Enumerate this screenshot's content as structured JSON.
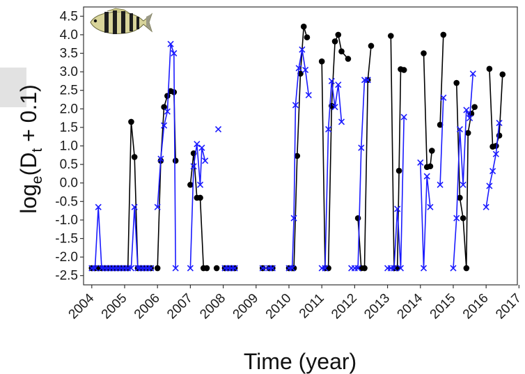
{
  "chart_data": {
    "type": "line",
    "title": "",
    "xlabel": "Time (year)",
    "ylabel_main": "log",
    "ylabel_sub1": "e",
    "ylabel_mid": "(D",
    "ylabel_sub2": "t",
    "ylabel_tail": " + 0.1)",
    "xlim": [
      2003.75,
      2016.95
    ],
    "ylim": [
      -2.75,
      4.75
    ],
    "x_ticks": [
      "2004",
      "2005",
      "2006",
      "2007",
      "2008",
      "2009",
      "2010",
      "2011",
      "2012",
      "2013",
      "2014",
      "2015",
      "2016",
      "2017"
    ],
    "y_ticks": [
      "4.5",
      "4.0",
      "3.5",
      "3.0",
      "2.5",
      "2.0",
      "1.5",
      "1.0",
      "0.5",
      "0.0",
      "-0.5",
      "-1.0",
      "-1.5",
      "-2.0",
      "-2.5"
    ],
    "grid": false,
    "legend": "none",
    "fish_icon": "sergeant-major-fish-icon",
    "series": [
      {
        "marker": "circle",
        "color": "#000000",
        "segments": [
          [
            [
              2004.0,
              -2.3
            ],
            [
              2004.1,
              -2.3
            ],
            [
              2004.2,
              -2.3
            ],
            [
              2004.3,
              -2.3
            ],
            [
              2004.4,
              -2.3
            ],
            [
              2004.5,
              -2.3
            ],
            [
              2004.6,
              -2.3
            ],
            [
              2004.7,
              -2.3
            ],
            [
              2004.8,
              -2.3
            ],
            [
              2004.9,
              -2.3
            ],
            [
              2005.0,
              -2.3
            ],
            [
              2005.1,
              -2.3
            ],
            [
              2005.2,
              1.65
            ],
            [
              2005.3,
              0.7
            ],
            [
              2005.4,
              -2.3
            ],
            [
              2005.5,
              -2.3
            ],
            [
              2005.6,
              -2.3
            ],
            [
              2005.7,
              -2.3
            ],
            [
              2005.8,
              -2.3
            ]
          ],
          [
            [
              2006.0,
              -2.3
            ],
            [
              2006.1,
              0.6
            ],
            [
              2006.2,
              2.05
            ],
            [
              2006.3,
              2.35
            ],
            [
              2006.4,
              2.48
            ],
            [
              2006.5,
              2.45
            ],
            [
              2006.55,
              0.6
            ]
          ],
          [
            [
              2007.0,
              -0.05
            ],
            [
              2007.1,
              0.8
            ],
            [
              2007.2,
              -0.4
            ],
            [
              2007.3,
              -0.4
            ],
            [
              2007.4,
              -2.3
            ],
            [
              2007.5,
              -2.3
            ]
          ],
          [
            [
              2007.8,
              -2.3
            ]
          ],
          [
            [
              2008.05,
              -2.3
            ],
            [
              2008.15,
              -2.3
            ],
            [
              2008.25,
              -2.3
            ],
            [
              2008.35,
              -2.3
            ]
          ],
          [
            [
              2009.2,
              -2.3
            ],
            [
              2009.4,
              -2.3
            ],
            [
              2009.5,
              -2.3
            ]
          ],
          [
            [
              2010.0,
              -2.3
            ],
            [
              2010.1,
              -2.3
            ],
            [
              2010.15,
              -2.3
            ],
            [
              2010.25,
              0.73
            ],
            [
              2010.35,
              2.95
            ],
            [
              2010.45,
              4.22
            ],
            [
              2010.55,
              3.93
            ]
          ],
          [
            [
              2011.0,
              3.28
            ],
            [
              2011.1,
              -2.3
            ],
            [
              2011.2,
              -2.3
            ],
            [
              2011.3,
              2.08
            ],
            [
              2011.4,
              3.82
            ],
            [
              2011.5,
              4.0
            ],
            [
              2011.6,
              3.55
            ],
            [
              2011.8,
              3.35
            ]
          ],
          [
            [
              2012.1,
              -0.95
            ],
            [
              2012.2,
              -2.3
            ],
            [
              2012.3,
              -2.3
            ],
            [
              2012.4,
              2.78
            ],
            [
              2012.5,
              3.7
            ]
          ],
          [
            [
              2013.1,
              3.97
            ],
            [
              2013.2,
              -2.3
            ],
            [
              2013.3,
              -2.3
            ],
            [
              2013.35,
              0.33
            ],
            [
              2013.4,
              3.07
            ],
            [
              2013.5,
              3.05
            ]
          ],
          [
            [
              2014.1,
              3.5
            ],
            [
              2014.2,
              0.43
            ],
            [
              2014.3,
              0.45
            ],
            [
              2014.35,
              0.87
            ]
          ],
          [
            [
              2014.6,
              1.57
            ],
            [
              2014.7,
              4.0
            ]
          ],
          [
            [
              2015.1,
              2.7
            ],
            [
              2015.2,
              -0.4
            ],
            [
              2015.3,
              -0.95
            ],
            [
              2015.4,
              -2.3
            ],
            [
              2015.45,
              1.35
            ],
            [
              2015.55,
              1.87
            ],
            [
              2015.65,
              2.05
            ]
          ],
          [
            [
              2016.1,
              3.08
            ],
            [
              2016.2,
              0.98
            ],
            [
              2016.3,
              1.0
            ],
            [
              2016.4,
              1.28
            ],
            [
              2016.5,
              2.93
            ]
          ]
        ]
      },
      {
        "marker": "x",
        "color": "#1a1aff",
        "segments": [
          [
            [
              2004.0,
              -2.3
            ],
            [
              2004.1,
              -2.3
            ],
            [
              2004.2,
              -0.65
            ],
            [
              2004.3,
              -2.3
            ],
            [
              2004.4,
              -2.3
            ],
            [
              2004.5,
              -2.3
            ],
            [
              2004.6,
              -2.3
            ],
            [
              2004.7,
              -2.3
            ],
            [
              2004.8,
              -2.3
            ],
            [
              2004.9,
              -2.3
            ],
            [
              2005.0,
              -2.3
            ],
            [
              2005.1,
              -2.3
            ],
            [
              2005.2,
              -2.3
            ],
            [
              2005.3,
              -0.65
            ],
            [
              2005.4,
              -2.3
            ],
            [
              2005.5,
              -2.3
            ],
            [
              2005.6,
              -2.3
            ],
            [
              2005.7,
              -2.3
            ],
            [
              2005.8,
              -2.3
            ]
          ],
          [
            [
              2006.0,
              -0.65
            ],
            [
              2006.1,
              0.65
            ],
            [
              2006.2,
              1.55
            ],
            [
              2006.3,
              1.93
            ],
            [
              2006.4,
              3.75
            ],
            [
              2006.5,
              3.5
            ],
            [
              2006.55,
              -2.3
            ]
          ],
          [
            [
              2007.0,
              -2.3
            ],
            [
              2007.1,
              0.45
            ],
            [
              2007.2,
              1.05
            ],
            [
              2007.3,
              -0.05
            ],
            [
              2007.35,
              0.95
            ],
            [
              2007.45,
              0.6
            ]
          ],
          [
            [
              2007.85,
              1.45
            ]
          ],
          [
            [
              2008.05,
              -2.3
            ],
            [
              2008.15,
              -2.3
            ],
            [
              2008.25,
              -2.3
            ],
            [
              2008.35,
              -2.3
            ]
          ],
          [
            [
              2009.2,
              -2.3
            ],
            [
              2009.4,
              -2.3
            ],
            [
              2009.5,
              -2.3
            ]
          ],
          [
            [
              2010.0,
              -2.3
            ],
            [
              2010.1,
              -2.3
            ],
            [
              2010.15,
              -0.95
            ],
            [
              2010.2,
              2.1
            ],
            [
              2010.3,
              3.1
            ],
            [
              2010.4,
              3.6
            ],
            [
              2010.5,
              3.05
            ],
            [
              2010.6,
              2.37
            ]
          ],
          [
            [
              2011.0,
              -2.3
            ],
            [
              2011.1,
              -2.3
            ],
            [
              2011.2,
              1.45
            ],
            [
              2011.3,
              2.75
            ],
            [
              2011.4,
              2.05
            ],
            [
              2011.5,
              2.65
            ],
            [
              2011.6,
              1.65
            ]
          ],
          [
            [
              2011.9,
              -2.3
            ]
          ],
          [
            [
              2012.0,
              -2.3
            ],
            [
              2012.1,
              -2.3
            ],
            [
              2012.2,
              0.95
            ],
            [
              2012.3,
              2.78
            ],
            [
              2012.4,
              2.78
            ]
          ],
          [
            [
              2013.0,
              -2.3
            ],
            [
              2013.1,
              -2.3
            ],
            [
              2013.2,
              -2.3
            ],
            [
              2013.3,
              -0.7
            ],
            [
              2013.4,
              -2.3
            ],
            [
              2013.5,
              1.78
            ]
          ],
          [
            [
              2014.0,
              0.55
            ],
            [
              2014.1,
              -2.3
            ],
            [
              2014.2,
              0.18
            ],
            [
              2014.3,
              -0.65
            ]
          ],
          [
            [
              2014.6,
              -0.05
            ],
            [
              2014.7,
              2.3
            ]
          ],
          [
            [
              2015.0,
              -2.3
            ],
            [
              2015.1,
              -0.95
            ],
            [
              2015.2,
              1.45
            ],
            [
              2015.3,
              -0.05
            ],
            [
              2015.4,
              1.97
            ],
            [
              2015.5,
              1.75
            ],
            [
              2015.6,
              2.95
            ]
          ],
          [
            [
              2016.0,
              -0.65
            ],
            [
              2016.1,
              -0.08
            ],
            [
              2016.2,
              0.32
            ],
            [
              2016.3,
              0.78
            ],
            [
              2016.4,
              1.62
            ]
          ]
        ]
      }
    ]
  }
}
